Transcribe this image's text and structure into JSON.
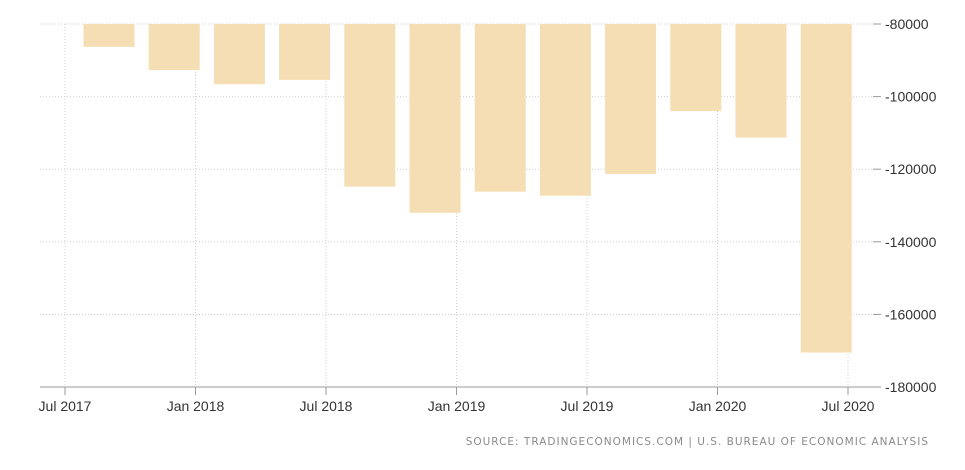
{
  "chart_data": {
    "type": "bar",
    "title": "",
    "xlabel": "",
    "ylabel": "",
    "categories": [
      "2017 Q3",
      "2017 Q4",
      "2018 Q1",
      "2018 Q2",
      "2018 Q3",
      "2018 Q4",
      "2019 Q1",
      "2019 Q2",
      "2019 Q3",
      "2019 Q4",
      "2020 Q1",
      "2020 Q2"
    ],
    "values": [
      -86300,
      -92700,
      -96600,
      -95400,
      -124800,
      -132000,
      -126200,
      -127300,
      -121300,
      -104000,
      -111300,
      -170500
    ],
    "ylim": [
      -180000,
      -80000
    ],
    "ytick_values": [
      -80000,
      -100000,
      -120000,
      -140000,
      -160000,
      -180000
    ],
    "yticks": [
      "-80000",
      "-100000",
      "-120000",
      "-140000",
      "-160000",
      "-180000"
    ],
    "xticks": [
      "Jul 2017",
      "Jan 2018",
      "Jul 2018",
      "Jan 2019",
      "Jul 2019",
      "Jan 2020",
      "Jul 2020"
    ],
    "y_axis_position": "right",
    "grid": true,
    "bar_color": "#f5deb3",
    "grid_color": "#cfcfcf",
    "text_color": "#333333"
  },
  "source_text": "SOURCE: TRADINGECONOMICS.COM | U.S. BUREAU OF ECONOMIC ANALYSIS"
}
